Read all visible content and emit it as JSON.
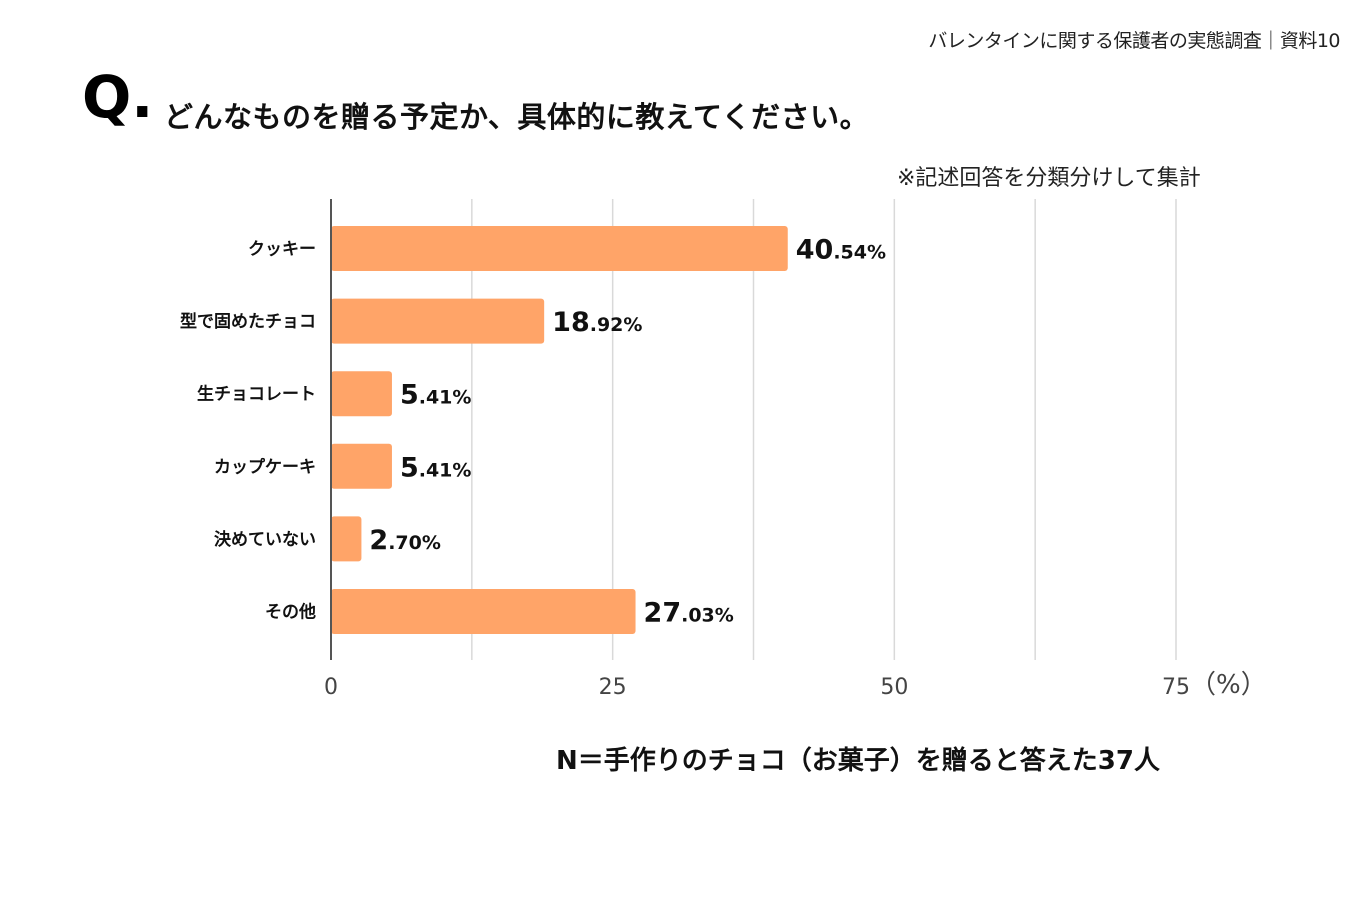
{
  "header": {
    "reference": "バレンタインに関する保護者の実態調査｜資料10"
  },
  "question": {
    "mark": "Q.",
    "text": "どんなものを贈る予定か、具体的に教えてください。"
  },
  "note": "※記述回答を分類分けして集計",
  "footer": {
    "n_note": "N＝手作りのチョコ（お菓子）を贈ると答えた37人"
  },
  "colors": {
    "bar": "#FFA468",
    "grid": "#D9D9D9",
    "axis": "#555555"
  },
  "chart_data": {
    "type": "bar",
    "orientation": "horizontal",
    "title": "どんなものを贈る予定か、具体的に教えてください。",
    "categories": [
      "クッキー",
      "型で固めたチョコ",
      "生チョコレート",
      "カップケーキ",
      "決めていない",
      "その他"
    ],
    "values": [
      40.54,
      18.92,
      5.41,
      5.41,
      2.7,
      27.03
    ],
    "value_labels": [
      {
        "int": "40",
        "dec": ".54%"
      },
      {
        "int": "18",
        "dec": ".92%"
      },
      {
        "int": "5",
        "dec": ".41%"
      },
      {
        "int": "5",
        "dec": ".41%"
      },
      {
        "int": "2",
        "dec": ".70%"
      },
      {
        "int": "27",
        "dec": ".03%"
      }
    ],
    "xlim": [
      0,
      75
    ],
    "xticks": [
      0,
      25,
      50,
      75
    ],
    "xtick_labels": [
      "0",
      "25",
      "50",
      "75"
    ],
    "minor_gridlines": [
      12.5,
      37.5,
      62.5
    ],
    "x_unit": "（%）",
    "grid": true,
    "legend": "none"
  }
}
